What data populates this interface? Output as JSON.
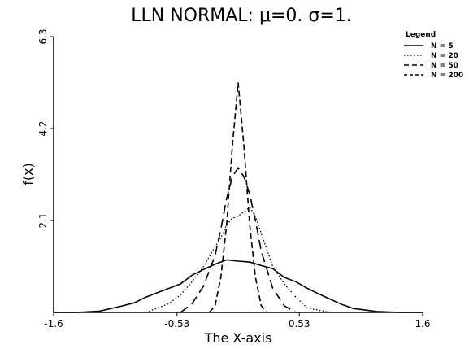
{
  "chart_data": {
    "type": "line",
    "title": "LLN NORMAL: μ=0. σ=1.",
    "xlabel": "The X-axis",
    "ylabel": "f(x)",
    "xlim": [
      -1.6,
      1.6
    ],
    "ylim": [
      0,
      6.3
    ],
    "xticks": [
      -1.6,
      -0.53,
      0.53,
      1.6
    ],
    "xtick_labels": [
      "-1.6",
      "-0.53",
      "0.53",
      "1.6"
    ],
    "yticks": [
      2.1,
      4.2,
      6.3
    ],
    "ytick_labels": [
      "2.1",
      "4.2",
      "6.3"
    ],
    "grid": false,
    "legend": {
      "title": "Legend",
      "placement": "top-right"
    },
    "series": [
      {
        "name": "N =   5",
        "style": "solid",
        "x": [
          -1.6,
          -1.4,
          -1.2,
          -1.0,
          -0.9,
          -0.8,
          -0.7,
          -0.6,
          -0.5,
          -0.4,
          -0.3,
          -0.2,
          -0.1,
          0.0,
          0.1,
          0.2,
          0.3,
          0.4,
          0.5,
          0.6,
          0.7,
          0.8,
          0.9,
          1.0,
          1.2,
          1.4,
          1.6
        ],
        "y": [
          0.0,
          0.0,
          0.03,
          0.15,
          0.22,
          0.35,
          0.45,
          0.55,
          0.65,
          0.85,
          0.98,
          1.1,
          1.2,
          1.17,
          1.15,
          1.07,
          1.0,
          0.8,
          0.7,
          0.55,
          0.42,
          0.3,
          0.18,
          0.09,
          0.02,
          0.0,
          0.0
        ]
      },
      {
        "name": "N =  20",
        "style": "dotted",
        "x": [
          -0.8,
          -0.6,
          -0.5,
          -0.4,
          -0.3,
          -0.2,
          -0.15,
          -0.1,
          -0.05,
          0.0,
          0.05,
          0.1,
          0.15,
          0.2,
          0.3,
          0.4,
          0.5,
          0.6,
          0.8
        ],
        "y": [
          0.0,
          0.2,
          0.4,
          0.7,
          1.05,
          1.5,
          1.7,
          2.0,
          2.15,
          2.2,
          2.3,
          2.4,
          2.2,
          1.8,
          1.05,
          0.65,
          0.35,
          0.1,
          0.0
        ]
      },
      {
        "name": "N =  50",
        "style": "longdash",
        "x": [
          -0.5,
          -0.4,
          -0.3,
          -0.2,
          -0.15,
          -0.1,
          -0.05,
          0.0,
          0.05,
          0.1,
          0.15,
          0.2,
          0.3,
          0.4,
          0.5
        ],
        "y": [
          0.0,
          0.2,
          0.6,
          1.3,
          1.9,
          2.6,
          3.1,
          3.3,
          3.1,
          2.7,
          2.1,
          1.4,
          0.55,
          0.15,
          0.0
        ]
      },
      {
        "name": "N = 200",
        "style": "dashed",
        "x": [
          -0.25,
          -0.2,
          -0.15,
          -0.1,
          -0.05,
          0.0,
          0.05,
          0.1,
          0.15,
          0.2,
          0.25
        ],
        "y": [
          0.0,
          0.15,
          0.8,
          2.0,
          3.8,
          5.25,
          3.8,
          2.0,
          0.8,
          0.15,
          0.0
        ]
      }
    ]
  }
}
